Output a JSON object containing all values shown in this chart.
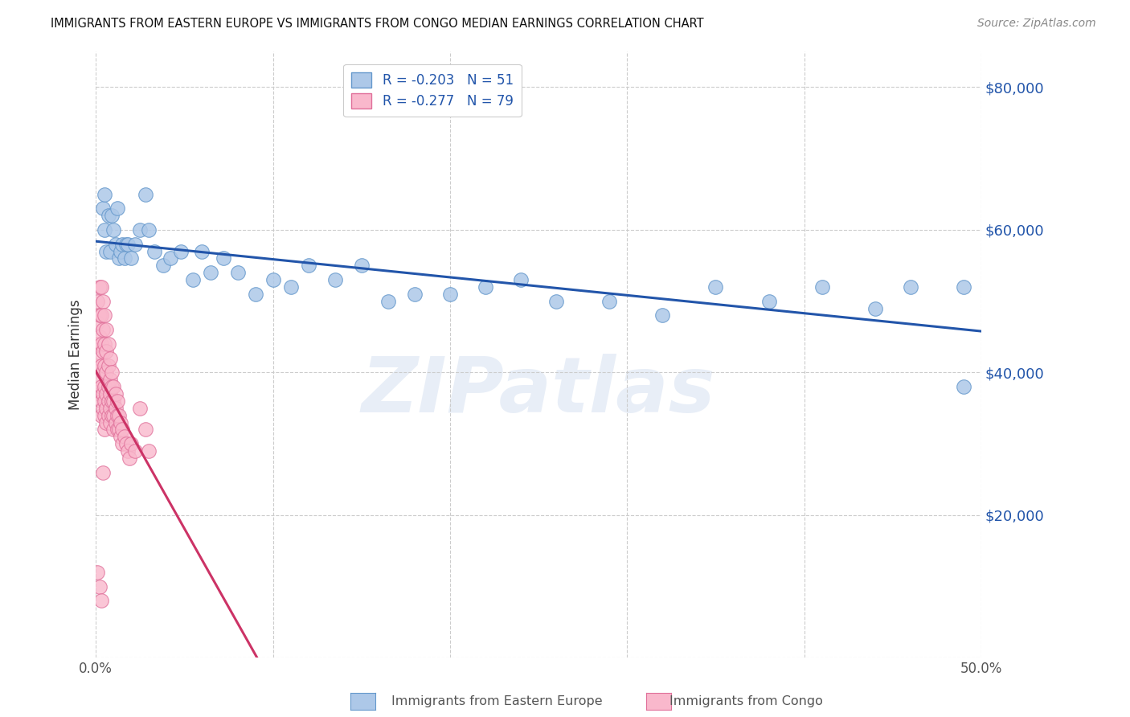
{
  "title": "IMMIGRANTS FROM EASTERN EUROPE VS IMMIGRANTS FROM CONGO MEDIAN EARNINGS CORRELATION CHART",
  "source": "Source: ZipAtlas.com",
  "ylabel": "Median Earnings",
  "xlim": [
    0.0,
    0.5
  ],
  "ylim": [
    0,
    85000
  ],
  "blue_color": "#adc8e8",
  "blue_edge_color": "#6699cc",
  "blue_line_color": "#2255aa",
  "pink_color": "#f9b8cc",
  "pink_edge_color": "#e0709a",
  "pink_line_color": "#cc3366",
  "r_blue": -0.203,
  "n_blue": 51,
  "r_pink": -0.277,
  "n_pink": 79,
  "watermark": "ZIPatlas",
  "background_color": "#ffffff",
  "grid_color": "#cccccc",
  "blue_scatter_x": [
    0.004,
    0.005,
    0.005,
    0.006,
    0.007,
    0.008,
    0.009,
    0.01,
    0.011,
    0.012,
    0.013,
    0.014,
    0.015,
    0.016,
    0.017,
    0.018,
    0.02,
    0.022,
    0.025,
    0.028,
    0.03,
    0.033,
    0.038,
    0.042,
    0.048,
    0.055,
    0.06,
    0.065,
    0.072,
    0.08,
    0.09,
    0.1,
    0.11,
    0.12,
    0.135,
    0.15,
    0.165,
    0.18,
    0.2,
    0.22,
    0.24,
    0.26,
    0.29,
    0.32,
    0.35,
    0.38,
    0.41,
    0.44,
    0.46,
    0.49,
    0.49
  ],
  "blue_scatter_y": [
    63000,
    65000,
    60000,
    57000,
    62000,
    57000,
    62000,
    60000,
    58000,
    63000,
    56000,
    57000,
    58000,
    56000,
    58000,
    58000,
    56000,
    58000,
    60000,
    65000,
    60000,
    57000,
    55000,
    56000,
    57000,
    53000,
    57000,
    54000,
    56000,
    54000,
    51000,
    53000,
    52000,
    55000,
    53000,
    55000,
    50000,
    51000,
    51000,
    52000,
    53000,
    50000,
    50000,
    48000,
    52000,
    50000,
    52000,
    49000,
    52000,
    52000,
    38000
  ],
  "pink_scatter_x": [
    0.001,
    0.001,
    0.001,
    0.001,
    0.002,
    0.002,
    0.002,
    0.002,
    0.002,
    0.002,
    0.003,
    0.003,
    0.003,
    0.003,
    0.003,
    0.003,
    0.003,
    0.004,
    0.004,
    0.004,
    0.004,
    0.004,
    0.004,
    0.005,
    0.005,
    0.005,
    0.005,
    0.005,
    0.005,
    0.005,
    0.006,
    0.006,
    0.006,
    0.006,
    0.006,
    0.006,
    0.007,
    0.007,
    0.007,
    0.007,
    0.007,
    0.008,
    0.008,
    0.008,
    0.008,
    0.008,
    0.009,
    0.009,
    0.009,
    0.009,
    0.01,
    0.01,
    0.01,
    0.01,
    0.011,
    0.011,
    0.011,
    0.012,
    0.012,
    0.012,
    0.013,
    0.013,
    0.014,
    0.014,
    0.015,
    0.015,
    0.016,
    0.017,
    0.018,
    0.019,
    0.02,
    0.022,
    0.025,
    0.028,
    0.03,
    0.001,
    0.002,
    0.003,
    0.004
  ],
  "pink_scatter_y": [
    50000,
    47000,
    44000,
    41000,
    52000,
    48000,
    45000,
    42000,
    39000,
    37000,
    52000,
    48000,
    44000,
    41000,
    38000,
    36000,
    34000,
    50000,
    46000,
    43000,
    40000,
    37000,
    35000,
    48000,
    44000,
    41000,
    38000,
    36000,
    34000,
    32000,
    46000,
    43000,
    40000,
    37000,
    35000,
    33000,
    44000,
    41000,
    38000,
    36000,
    34000,
    42000,
    39000,
    37000,
    35000,
    33000,
    40000,
    38000,
    36000,
    34000,
    38000,
    36000,
    34000,
    32000,
    37000,
    35000,
    33000,
    36000,
    34000,
    32000,
    34000,
    32000,
    33000,
    31000,
    32000,
    30000,
    31000,
    30000,
    29000,
    28000,
    30000,
    29000,
    35000,
    32000,
    29000,
    12000,
    10000,
    8000,
    26000
  ]
}
